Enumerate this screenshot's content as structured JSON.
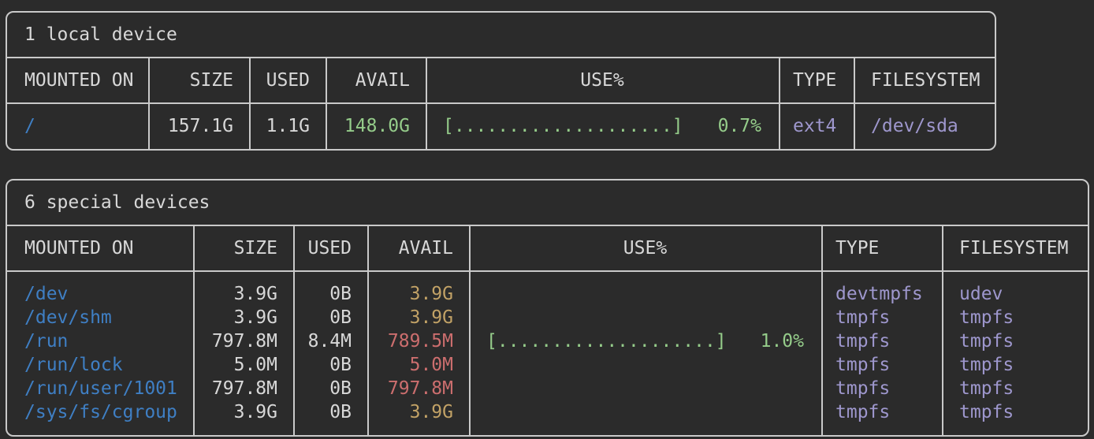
{
  "colors": {
    "background": "#2b2b2b",
    "border": "#c9c9c9",
    "text": "#d8d8d8",
    "blue": "#3f7fc4",
    "green": "#95cc8a",
    "tan": "#c2a266",
    "red": "#cc6e6e",
    "purple": "#9e97cd"
  },
  "tables": [
    {
      "title": "1 local device",
      "headers": [
        "MOUNTED ON",
        "SIZE",
        "USED",
        "AVAIL",
        "USE%",
        "TYPE",
        "FILESYSTEM"
      ],
      "rows": [
        {
          "mounted_on": "/",
          "size": "157.1G",
          "used": "1.1G",
          "avail": "148.0G",
          "use_bar": "[....................]",
          "use_pct": "0.7%",
          "type": "ext4",
          "filesystem": "/dev/sda"
        }
      ]
    },
    {
      "title": "6 special devices",
      "headers": [
        "MOUNTED ON",
        "SIZE",
        "USED",
        "AVAIL",
        "USE%",
        "TYPE",
        "FILESYSTEM"
      ],
      "rows": [
        {
          "mounted_on": "/dev",
          "size": "3.9G",
          "used": "0B",
          "avail": "3.9G",
          "use_bar": "",
          "use_pct": "",
          "type": "devtmpfs",
          "filesystem": "udev"
        },
        {
          "mounted_on": "/dev/shm",
          "size": "3.9G",
          "used": "0B",
          "avail": "3.9G",
          "use_bar": "",
          "use_pct": "",
          "type": "tmpfs",
          "filesystem": "tmpfs"
        },
        {
          "mounted_on": "/run",
          "size": "797.8M",
          "used": "8.4M",
          "avail": "789.5M",
          "use_bar": "[....................]",
          "use_pct": "1.0%",
          "type": "tmpfs",
          "filesystem": "tmpfs"
        },
        {
          "mounted_on": "/run/lock",
          "size": "5.0M",
          "used": "0B",
          "avail": "5.0M",
          "use_bar": "",
          "use_pct": "",
          "type": "tmpfs",
          "filesystem": "tmpfs"
        },
        {
          "mounted_on": "/run/user/1001",
          "size": "797.8M",
          "used": "0B",
          "avail": "797.8M",
          "use_bar": "",
          "use_pct": "",
          "type": "tmpfs",
          "filesystem": "tmpfs"
        },
        {
          "mounted_on": "/sys/fs/cgroup",
          "size": "3.9G",
          "used": "0B",
          "avail": "3.9G",
          "use_bar": "",
          "use_pct": "",
          "type": "tmpfs",
          "filesystem": "tmpfs"
        }
      ]
    }
  ]
}
